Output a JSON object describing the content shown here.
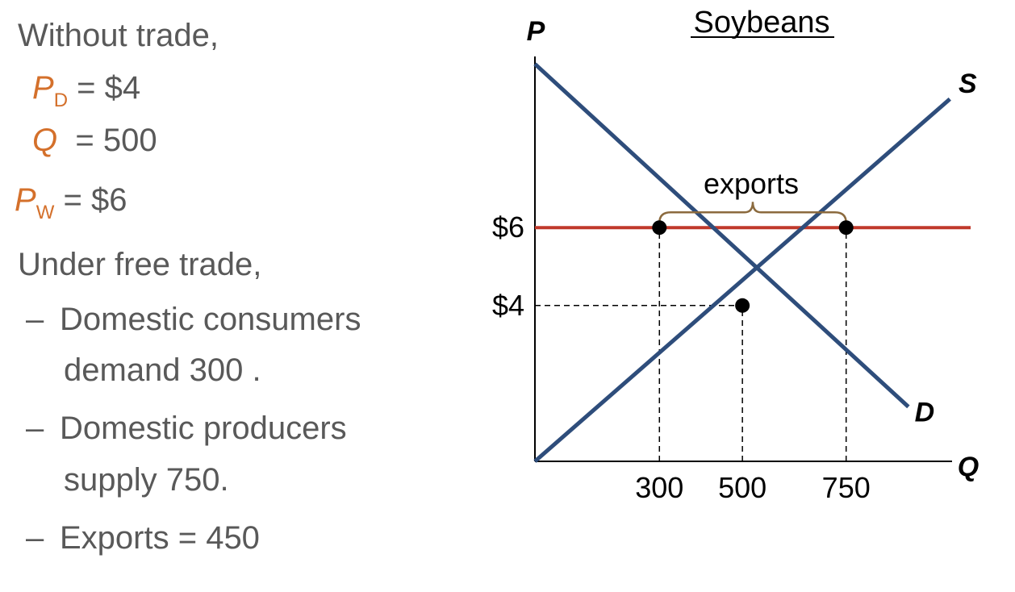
{
  "notes": {
    "without_trade": "Without trade,",
    "pd_symbol": "P",
    "pd_subscript": "D",
    "pd_value": "= $4",
    "q_symbol": "Q",
    "q_value": "= 500",
    "pw_symbol": "P",
    "pw_subscript": "W",
    "pw_value": "= $6",
    "under_free_trade": "Under free trade,",
    "bullets": [
      {
        "dash": "–",
        "lines": [
          "Domestic consumers",
          "demand 300 ."
        ]
      },
      {
        "dash": "–",
        "lines": [
          "Domestic producers",
          "supply 750."
        ]
      },
      {
        "dash": "–",
        "lines": [
          "Exports = 450"
        ]
      }
    ]
  },
  "chart_data": {
    "type": "line",
    "title": "Soybeans",
    "xlabel": "Q",
    "ylabel": "P",
    "xlim": [
      0,
      1050
    ],
    "ylim": [
      0,
      10.6
    ],
    "x_ticks": [
      {
        "value": 300,
        "label": "300"
      },
      {
        "value": 500,
        "label": "500"
      },
      {
        "value": 750,
        "label": "750"
      }
    ],
    "y_ticks": [
      {
        "value": 4,
        "label": "$4"
      },
      {
        "value": 6,
        "label": "$6"
      }
    ],
    "series": [
      {
        "name": "D",
        "color": "#2e4d7b",
        "points": [
          [
            0,
            10.2
          ],
          [
            900,
            1.4
          ]
        ]
      },
      {
        "name": "S",
        "color": "#2e4d7b",
        "points": [
          [
            0,
            0
          ],
          [
            1000,
            9.3
          ]
        ]
      }
    ],
    "world_price_line": {
      "value": 6,
      "color": "#c0392b"
    },
    "equilibrium_points": [
      [
        300,
        6
      ],
      [
        500,
        4
      ],
      [
        750,
        6
      ]
    ],
    "guide_lines": [
      {
        "from": [
          0,
          4
        ],
        "to": [
          500,
          4
        ]
      },
      {
        "from": [
          300,
          0
        ],
        "to": [
          300,
          6
        ]
      },
      {
        "from": [
          500,
          0
        ],
        "to": [
          500,
          4
        ]
      },
      {
        "from": [
          750,
          0
        ],
        "to": [
          750,
          6
        ]
      }
    ],
    "annotation": {
      "text": "exports",
      "from_x": 300,
      "to_x": 750,
      "y": 6,
      "brace_color": "#8b6a3e"
    },
    "colors": {
      "curves": "#2e4d7b",
      "world_price": "#c0392b",
      "brace": "#8b6a3e"
    }
  }
}
